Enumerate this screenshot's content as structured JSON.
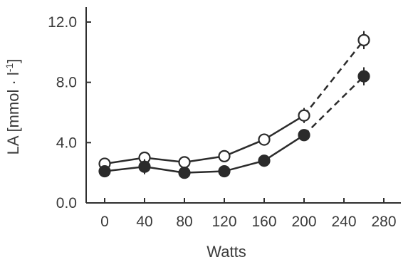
{
  "chart_data": {
    "type": "line",
    "title": "",
    "xlabel": "Watts",
    "ylabel": "LA [mmol · l",
    "ylabel_superscript": "-1",
    "ylabel_close": "]",
    "xlim": [
      -10,
      285
    ],
    "ylim": [
      0,
      13.2
    ],
    "x_ticks": [
      0,
      40,
      80,
      120,
      160,
      200,
      240,
      280
    ],
    "x_tick_labels": [
      "0",
      "40",
      "80",
      "120",
      "160",
      "200",
      "240",
      "280"
    ],
    "y_ticks": [
      0,
      4,
      8,
      12
    ],
    "y_tick_labels": [
      "0.0",
      "4.0",
      "8.0",
      "12.0"
    ],
    "grid": false,
    "legend": null,
    "series": [
      {
        "marker": "open-circle",
        "x": [
          0,
          40,
          80,
          120,
          160,
          200,
          260
        ],
        "y": [
          2.6,
          3.0,
          2.7,
          3.1,
          4.2,
          5.8,
          10.8
        ],
        "err": [
          0.2,
          0.3,
          0.2,
          0.2,
          0.4,
          0.5,
          0.6
        ],
        "dashed_from_index": 5
      },
      {
        "marker": "filled-circle",
        "x": [
          0,
          40,
          80,
          120,
          160,
          200,
          260
        ],
        "y": [
          2.1,
          2.4,
          2.0,
          2.1,
          2.8,
          4.5,
          8.4
        ],
        "err": [
          0.2,
          0.5,
          0.2,
          0.2,
          0.2,
          0.3,
          0.6
        ],
        "dashed_from_index": 5
      }
    ]
  }
}
